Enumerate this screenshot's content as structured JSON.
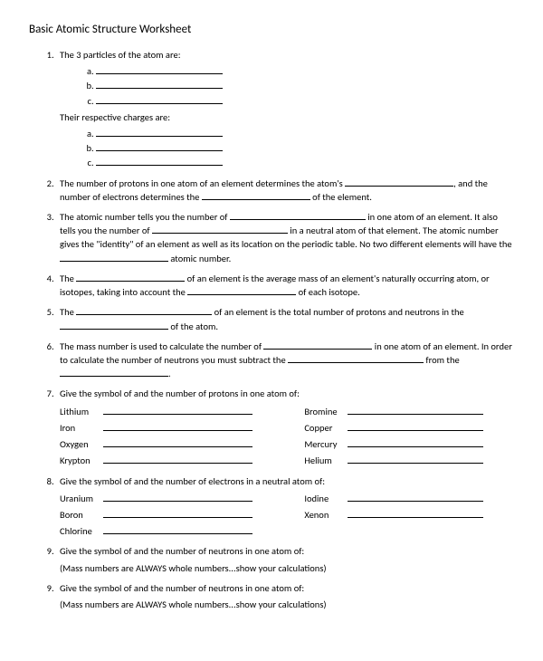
{
  "title": "Basic Atomic Structure Worksheet",
  "q1": {
    "text": "The 3 particles of the atom are:",
    "sub": [
      "",
      "",
      ""
    ],
    "text2": "Their respective charges are:",
    "sub2": [
      "",
      "",
      ""
    ]
  },
  "q2": {
    "pre": "The number of protons in one atom of an element determines the atom's ",
    "mid": ", and the number of electrons determines the ",
    "post": " of the element."
  },
  "q3": {
    "p1": "The atomic number tells you the number of ",
    "p2": " in one atom of an element.  It also tells you the number of ",
    "p3": " in a neutral atom of that element.  The atomic number gives the \"identity\" of an element as well as its location on the periodic table.  No two different elements will have the ",
    "p4": " atomic number."
  },
  "q4": {
    "p1": "The ",
    "p2": " of an element is the average mass of an element's naturally occurring atom, or isotopes, taking into account the ",
    "p3": " of each isotope."
  },
  "q5": {
    "p1": "The ",
    "p2": " of an element is the total number of protons and neutrons in the ",
    "p3": " of the atom."
  },
  "q6": {
    "p1": "The mass number is used to calculate the number of ",
    "p2": " in one atom of an element.  In order to calculate the number of neutrons you must subtract the ",
    "p3": " from the ",
    "p4": "."
  },
  "q7": {
    "text": "Give the symbol of and the number of protons in one atom of:",
    "rows": [
      {
        "l": "Lithium",
        "r": "Bromine"
      },
      {
        "l": "Iron",
        "r": "Copper"
      },
      {
        "l": "Oxygen",
        "r": "Mercury"
      },
      {
        "l": "Krypton",
        "r": "Helium"
      }
    ]
  },
  "q8": {
    "text": "Give the symbol of and the number of electrons in a neutral atom of:",
    "rows": [
      {
        "l": "Uranium",
        "r": "Iodine"
      },
      {
        "l": "Boron",
        "r": "Xenon"
      },
      {
        "l": "Chlorine",
        "r": ""
      }
    ]
  },
  "q9": {
    "text": "Give the symbol of and the number of neutrons in one atom of:",
    "note": "(Mass numbers are ALWAYS whole numbers...show your calculations)"
  },
  "q9b": {
    "text": "Give the symbol of and the number of neutrons in one atom of:",
    "note": "(Mass numbers are ALWAYS whole numbers...show your calculations)"
  }
}
